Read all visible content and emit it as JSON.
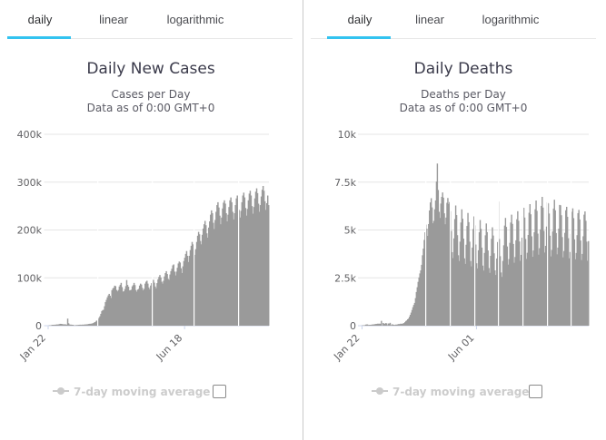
{
  "tabs": {
    "items": [
      "daily",
      "linear",
      "logarithmic"
    ],
    "active": "daily"
  },
  "accent_color": "#33c3f0",
  "divider_color": "#c9c9c9",
  "chart_data": [
    {
      "type": "bar",
      "title": "Daily New Cases",
      "subtitle_line1": "Cases per Day",
      "subtitle_line2": "Data as of 0:00 GMT+0",
      "legend": "7-day moving average",
      "legend_checked": false,
      "bar_color": "#9a9a9a",
      "grid_color": "#e6e6e6",
      "axis_color": "#ccd6eb",
      "label_color": "#606063",
      "ylim": [
        0,
        400000
      ],
      "ytick_labels": [
        "0",
        "100k",
        "200k",
        "300k",
        "400k"
      ],
      "xticks": [
        {
          "label": "Jan 22",
          "day": 0
        },
        {
          "label": "Jun 18",
          "day": 148
        }
      ],
      "x_unit": "days since Jan 22",
      "values": [
        450,
        650,
        800,
        900,
        1750,
        1870,
        1750,
        2100,
        2000,
        2600,
        2500,
        2800,
        3300,
        3900,
        3700,
        3400,
        3000,
        2700,
        3000,
        2600,
        2100,
        14800,
        5100,
        2700,
        2100,
        2200,
        1900,
        1800,
        900,
        600,
        1400,
        1300,
        1500,
        1800,
        2000,
        2100,
        1800,
        2300,
        2000,
        2400,
        2600,
        2700,
        2900,
        3100,
        3700,
        4000,
        4000,
        4400,
        4900,
        5600,
        7000,
        7600,
        10000,
        10900,
        13600,
        16500,
        19700,
        24800,
        30500,
        32500,
        33300,
        40700,
        49300,
        54000,
        59200,
        63300,
        66500,
        62600,
        57800,
        74100,
        77600,
        79600,
        83600,
        82600,
        74600,
        71700,
        74500,
        81900,
        85500,
        89500,
        80600,
        71200,
        71900,
        76400,
        82700,
        95400,
        85200,
        81400,
        73700,
        74200,
        75100,
        82200,
        84700,
        89400,
        84900,
        74400,
        70900,
        75400,
        76900,
        83900,
        87900,
        85900,
        78900,
        73900,
        76900,
        87900,
        91900,
        93900,
        87900,
        79900,
        75900,
        83900,
        88900,
        94900,
        95900,
        89900,
        81900,
        77900,
        88900,
        96900,
        101900,
        105900,
        100900,
        91900,
        87900,
        93900,
        102900,
        109900,
        113900,
        107900,
        97900,
        96000,
        107000,
        114000,
        119000,
        126000,
        128000,
        113000,
        105000,
        113000,
        121000,
        130000,
        134000,
        132000,
        120000,
        110000,
        124000,
        135000,
        142000,
        150000,
        156000,
        146000,
        133000,
        146000,
        158000,
        167000,
        175000,
        170000,
        158000,
        148000,
        160000,
        175000,
        188000,
        196000,
        191000,
        177000,
        170000,
        190000,
        203000,
        212000,
        219000,
        210000,
        193000,
        184000,
        205000,
        218000,
        232000,
        241000,
        235000,
        215000,
        202000,
        221000,
        238000,
        252000,
        258000,
        247000,
        230000,
        212000,
        226000,
        245000,
        257000,
        262000,
        255000,
        235000,
        218000,
        232000,
        248000,
        262000,
        268000,
        258000,
        238000,
        222000,
        235000,
        252000,
        266000,
        272000,
        263000,
        242000,
        226000,
        240000,
        258000,
        272000,
        278000,
        268000,
        246000,
        230000,
        244000,
        262000,
        276000,
        282000,
        272000,
        250000,
        234000,
        248000,
        266000,
        280000,
        287000,
        277000,
        255000,
        238000,
        252000,
        270000,
        284000,
        292000,
        282000,
        260000,
        242000,
        256000,
        272000,
        252000
      ]
    },
    {
      "type": "bar",
      "title": "Daily Deaths",
      "subtitle_line1": "Deaths per Day",
      "subtitle_line2": "Data as of 0:00 GMT+0",
      "legend": "7-day moving average",
      "legend_checked": false,
      "bar_color": "#9a9a9a",
      "grid_color": "#e6e6e6",
      "axis_color": "#ccd6eb",
      "label_color": "#606063",
      "ylim": [
        0,
        10000
      ],
      "ytick_labels": [
        "0",
        "2.5k",
        "5k",
        "7.5k",
        "10k"
      ],
      "xticks": [
        {
          "label": "Jan 22",
          "day": 0
        },
        {
          "label": "Jun 01",
          "day": 131
        }
      ],
      "x_unit": "days since Jan 22",
      "values": [
        17,
        18,
        26,
        26,
        56,
        65,
        66,
        38,
        43,
        46,
        46,
        57,
        65,
        66,
        73,
        86,
        89,
        97,
        108,
        97,
        108,
        97,
        254,
        13,
        143,
        106,
        98,
        136,
        120,
        29,
        115,
        109,
        150,
        28,
        64,
        70,
        47,
        36,
        55,
        58,
        56,
        81,
        85,
        83,
        105,
        98,
        102,
        123,
        140,
        188,
        246,
        273,
        335,
        370,
        462,
        567,
        685,
        820,
        966,
        1085,
        1190,
        1440,
        1760,
        2010,
        2290,
        2520,
        2730,
        2890,
        3180,
        3680,
        4030,
        4480,
        4880,
        5280,
        5070,
        4690,
        5310,
        6020,
        6440,
        6660,
        6180,
        5350,
        5470,
        6080,
        6540,
        7530,
        8470,
        7090,
        5950,
        5630,
        6380,
        6730,
        6960,
        6690,
        5870,
        5300,
        5650,
        6420,
        6670,
        6360,
        6460,
        5980,
        4950,
        3840,
        3530,
        4560,
        5570,
        6280,
        5780,
        4730,
        3680,
        3380,
        4390,
        5390,
        6080,
        5590,
        4550,
        3520,
        3230,
        4230,
        5210,
        5890,
        5410,
        4390,
        3380,
        3100,
        4080,
        5050,
        5710,
        5240,
        4240,
        3260,
        2990,
        3940,
        4880,
        5520,
        5060,
        4080,
        3140,
        2880,
        3800,
        4720,
        5340,
        4890,
        3930,
        3010,
        2760,
        3650,
        4540,
        5140,
        4710,
        3780,
        2890,
        2650,
        3510,
        4370,
        6480,
        4530,
        3630,
        2780,
        2550,
        3380,
        4200,
        5230,
        5630,
        5160,
        4140,
        3190,
        3480,
        4330,
        5390,
        5800,
        5320,
        4270,
        3290,
        3590,
        4460,
        5560,
        5980,
        5480,
        4400,
        3390,
        3700,
        4600,
        5730,
        6160,
        5650,
        4530,
        3490,
        3810,
        4740,
        5900,
        6350,
        5820,
        4670,
        3600,
        3930,
        4880,
        6080,
        6540,
        6000,
        4810,
        3710,
        4050,
        5030,
        6260,
        6730,
        6170,
        4950,
        3820,
        4170,
        5180,
        6450,
        6390,
        5860,
        4700,
        3620,
        3960,
        4920,
        6120,
        6580,
        6030,
        4840,
        3730,
        4080,
        5070,
        6310,
        6290,
        5770,
        4630,
        3570,
        3900,
        4850,
        6030,
        6210,
        5690,
        4570,
        3520,
        3850,
        4790,
        5950,
        6130,
        5620,
        4510,
        3470,
        3800,
        4730,
        5880,
        6050,
        5550,
        4450,
        3430,
        3750,
        4670,
        5800,
        5970,
        5480,
        4390,
        3390,
        4420
      ]
    }
  ]
}
